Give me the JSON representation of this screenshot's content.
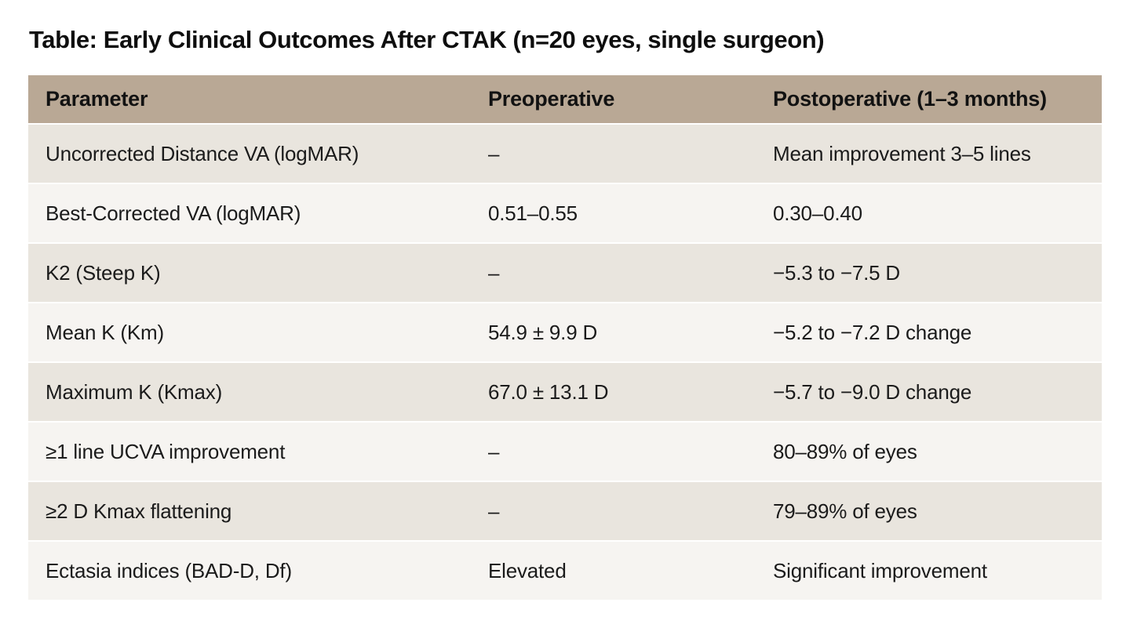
{
  "title": "Table: Early Clinical Outcomes After CTAK (n=20 eyes, single surgeon)",
  "colors": {
    "page_background": "#ffffff",
    "header_background": "#b9a895",
    "row_odd_background": "#e9e5de",
    "row_even_background": "#f6f4f1",
    "text": "#1b1b1b"
  },
  "chart_data": {
    "type": "table",
    "title": "Table: Early Clinical Outcomes After CTAK (n=20 eyes, single surgeon)",
    "columns": [
      "Parameter",
      "Preoperative",
      "Postoperative (1–3 months)"
    ],
    "rows": [
      [
        "Uncorrected Distance VA (logMAR)",
        "–",
        "Mean improvement 3–5 lines"
      ],
      [
        "Best-Corrected VA (logMAR)",
        "0.51–0.55",
        "0.30–0.40"
      ],
      [
        "K2 (Steep K)",
        "–",
        "−5.3 to −7.5 D"
      ],
      [
        "Mean K (Km)",
        "54.9 ± 9.9 D",
        "−5.2 to −7.2 D change"
      ],
      [
        "Maximum K (Kmax)",
        "67.0 ± 13.1 D",
        "−5.7 to −9.0 D change"
      ],
      [
        "≥1 line UCVA improvement",
        "–",
        "80–89% of eyes"
      ],
      [
        "≥2 D Kmax flattening",
        "–",
        "79–89% of eyes"
      ],
      [
        "Ectasia indices (BAD-D, Df)",
        "Elevated",
        "Significant improvement"
      ]
    ]
  }
}
